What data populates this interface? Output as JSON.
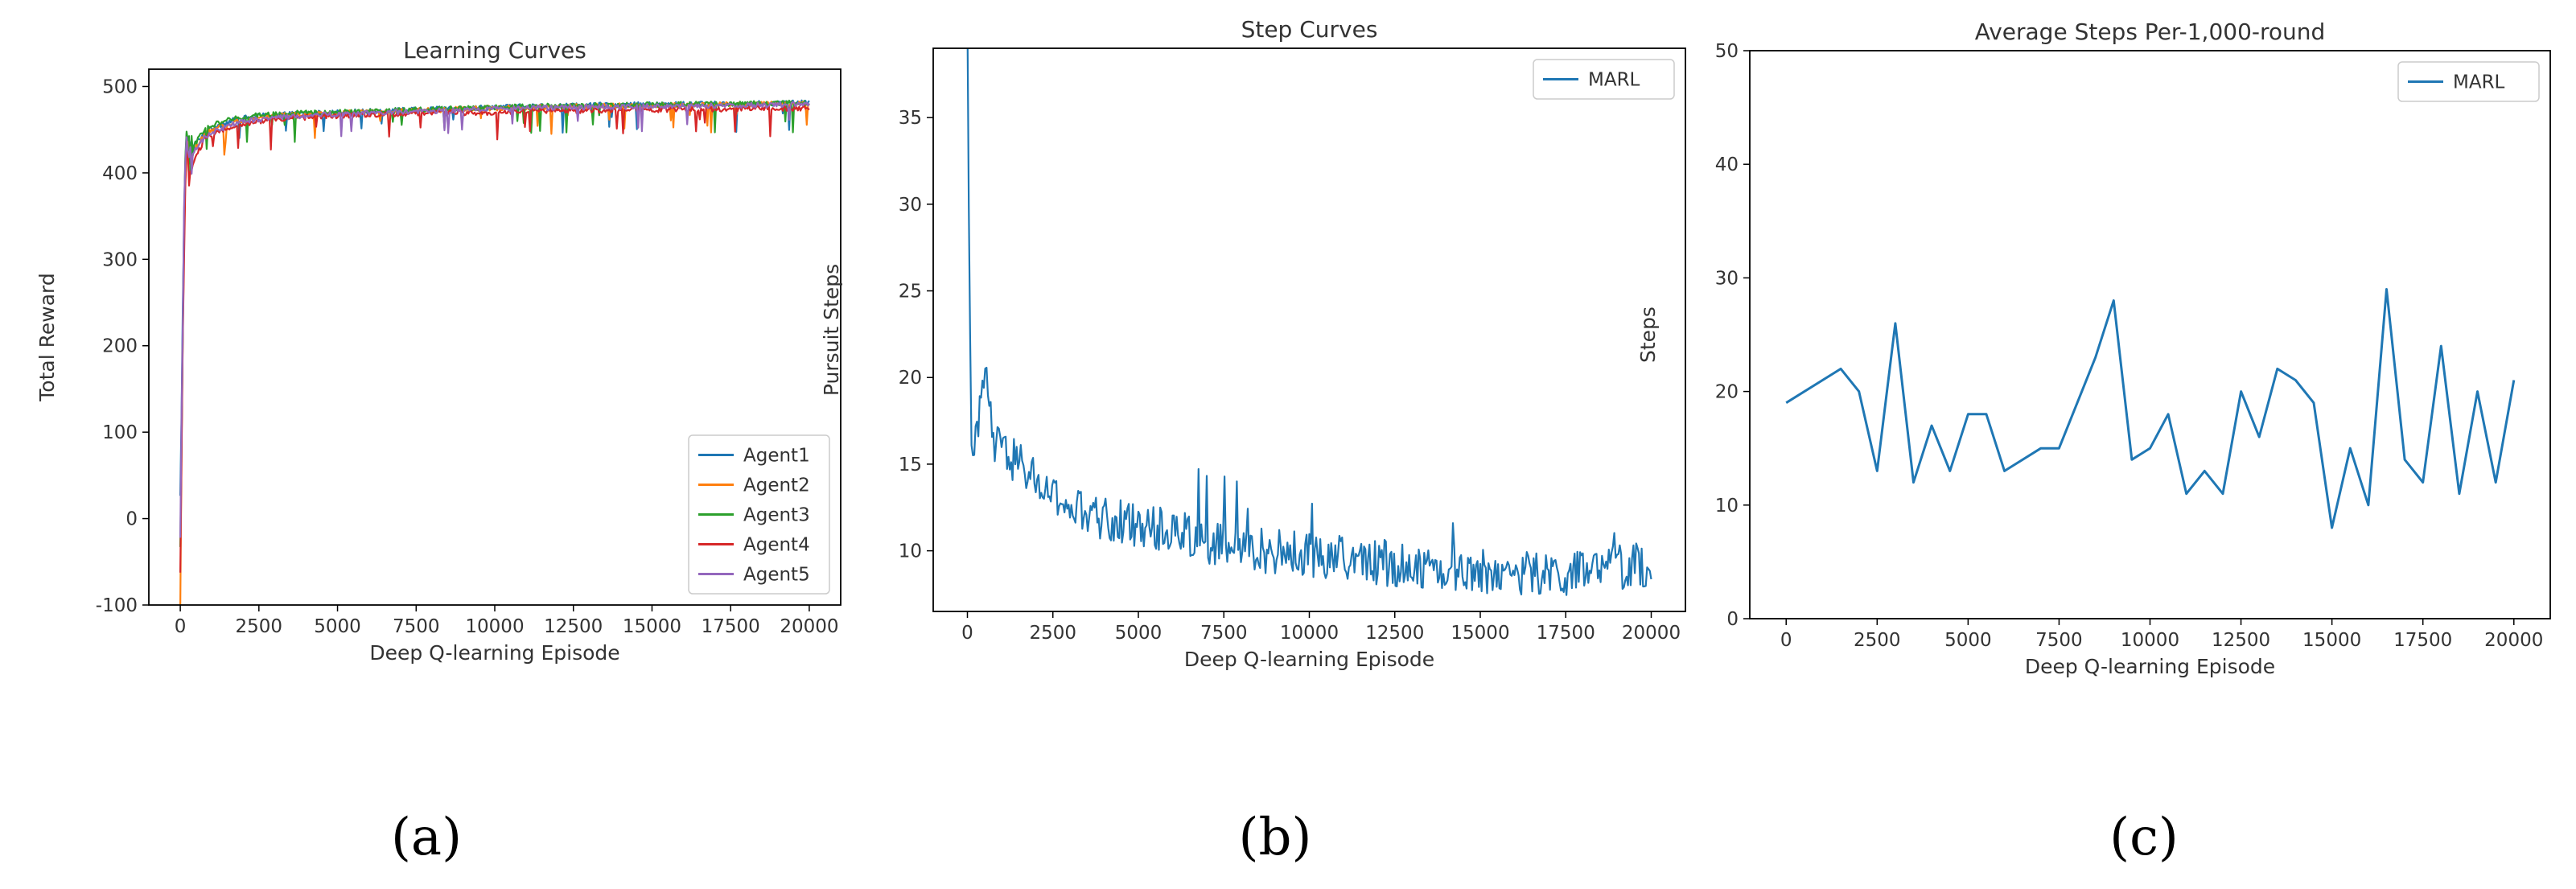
{
  "chart_data": [
    {
      "type": "line",
      "title": "Learning Curves",
      "xlabel": "Deep Q-learning Episode",
      "ylabel": "Total Reward",
      "xlim": [
        -1000,
        21000
      ],
      "ylim": [
        -100,
        520
      ],
      "xticks": [
        0,
        2500,
        5000,
        7500,
        10000,
        12500,
        15000,
        17500,
        20000
      ],
      "yticks": [
        -100,
        0,
        100,
        200,
        300,
        400,
        500
      ],
      "legend_position": "lower-right",
      "caption": "(a)",
      "series": [
        {
          "name": "Agent1",
          "color": "#1f77b4",
          "x": [
            0,
            50,
            100,
            150,
            200,
            300,
            500,
            800,
            1200,
            1800,
            2500,
            3500,
            5000,
            7500,
            10000,
            12500,
            15000,
            17500,
            20000
          ],
          "y": [
            20,
            140,
            300,
            410,
            440,
            425,
            435,
            448,
            455,
            462,
            466,
            468,
            470,
            473,
            476,
            478,
            479,
            480,
            481
          ]
        },
        {
          "name": "Agent2",
          "color": "#ff7f0e",
          "x": [
            0,
            50,
            100,
            150,
            200,
            300,
            500,
            800,
            1200,
            1800,
            2500,
            3500,
            5000,
            7500,
            10000,
            12500,
            15000,
            17500,
            20000
          ],
          "y": [
            -75,
            120,
            270,
            390,
            430,
            420,
            430,
            445,
            452,
            460,
            464,
            467,
            469,
            472,
            475,
            477,
            478,
            479,
            480
          ]
        },
        {
          "name": "Agent3",
          "color": "#2ca02c",
          "x": [
            0,
            50,
            100,
            150,
            200,
            300,
            500,
            800,
            1200,
            1800,
            2500,
            3500,
            5000,
            7500,
            10000,
            12500,
            15000,
            17500,
            20000
          ],
          "y": [
            -40,
            130,
            290,
            400,
            438,
            428,
            436,
            450,
            458,
            463,
            467,
            469,
            470,
            473,
            476,
            478,
            479,
            480,
            481
          ]
        },
        {
          "name": "Agent4",
          "color": "#d62728",
          "x": [
            0,
            50,
            100,
            150,
            200,
            300,
            500,
            800,
            1200,
            1800,
            2500,
            3500,
            5000,
            7500,
            10000,
            12500,
            15000,
            17500,
            20000
          ],
          "y": [
            -70,
            110,
            260,
            370,
            420,
            400,
            420,
            440,
            448,
            455,
            460,
            463,
            466,
            469,
            470,
            472,
            473,
            474,
            475
          ]
        },
        {
          "name": "Agent5",
          "color": "#9467bd",
          "x": [
            0,
            50,
            100,
            150,
            200,
            300,
            500,
            800,
            1200,
            1800,
            2500,
            3500,
            5000,
            7500,
            10000,
            12500,
            15000,
            17500,
            20000
          ],
          "y": [
            -30,
            150,
            320,
            400,
            435,
            415,
            428,
            442,
            450,
            458,
            462,
            465,
            468,
            471,
            474,
            476,
            477,
            478,
            479
          ]
        }
      ]
    },
    {
      "type": "line",
      "title": "Step Curves",
      "xlabel": "Deep Q-learning Episode",
      "ylabel": "Pursuit Steps",
      "xlim": [
        -1000,
        21000
      ],
      "ylim": [
        6.5,
        39
      ],
      "xticks": [
        0,
        2500,
        5000,
        7500,
        10000,
        12500,
        15000,
        17500,
        20000
      ],
      "yticks": [
        10,
        15,
        20,
        25,
        30,
        35
      ],
      "legend_position": "top-right",
      "caption": "(b)",
      "series": [
        {
          "name": "MARL",
          "color": "#1f77b4",
          "x": [
            0,
            50,
            100,
            200,
            300,
            500,
            800,
            1200,
            1800,
            2500,
            3500,
            5000,
            6500,
            7500,
            10000,
            12500,
            15000,
            17500,
            20000
          ],
          "y": [
            38,
            26,
            18,
            16.5,
            16,
            20.5,
            16,
            15.5,
            14.5,
            13,
            12,
            11.5,
            11,
            10.2,
            9.8,
            9.2,
            8.8,
            8.6,
            9.3
          ]
        }
      ]
    },
    {
      "type": "line",
      "title": "Average Steps Per-1,000-round",
      "xlabel": "Deep Q-learning Episode",
      "ylabel": "Steps",
      "xlim": [
        -1000,
        21000
      ],
      "ylim": [
        0,
        50
      ],
      "xticks": [
        0,
        2500,
        5000,
        7500,
        10000,
        12500,
        15000,
        17500,
        20000
      ],
      "yticks": [
        0,
        10,
        20,
        30,
        40,
        50
      ],
      "legend_position": "top-right",
      "caption": "(c)",
      "series": [
        {
          "name": "MARL",
          "color": "#1f77b4",
          "x": [
            0,
            1500,
            2000,
            2500,
            3000,
            3500,
            4000,
            4500,
            5000,
            5500,
            6000,
            7000,
            7500,
            8500,
            9000,
            9500,
            10000,
            10500,
            11000,
            11500,
            12000,
            12500,
            13000,
            13500,
            14000,
            14500,
            15000,
            15500,
            16000,
            16500,
            17000,
            17500,
            18000,
            18500,
            19000,
            19500,
            20000
          ],
          "y": [
            19,
            22,
            20,
            13,
            26,
            12,
            17,
            13,
            18,
            18,
            13,
            15,
            15,
            23,
            28,
            14,
            15,
            18,
            11,
            13,
            11,
            20,
            16,
            22,
            21,
            19,
            8,
            15,
            10,
            29,
            14,
            12,
            24,
            11,
            20,
            12,
            21
          ]
        }
      ]
    }
  ]
}
